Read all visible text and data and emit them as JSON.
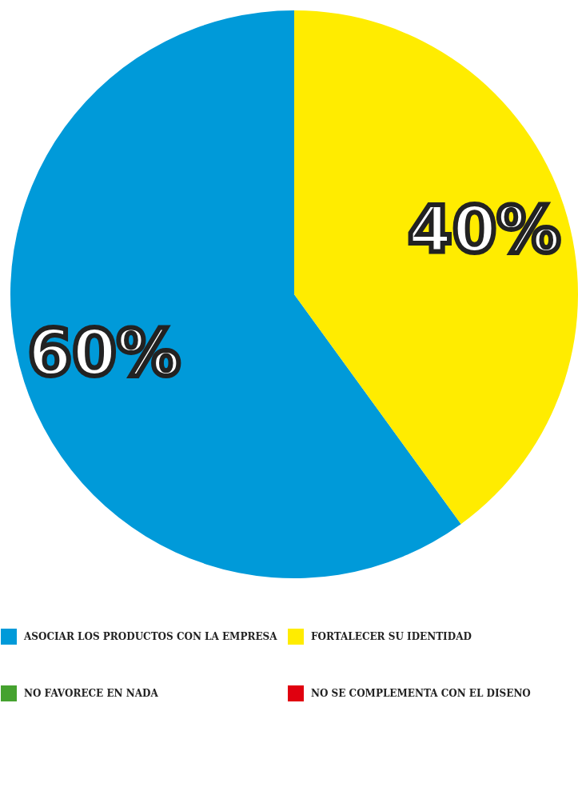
{
  "chart_data": {
    "type": "pie",
    "categories": [
      "ASOCIAR LOS PRODUCTOS CON LA EMPRESA",
      "FORTALECER SU IDENTIDAD",
      "NO FAVORECE EN NADA",
      "NO SE COMPLEMENTA CON EL DISENO"
    ],
    "values": [
      60,
      40,
      0,
      0
    ],
    "colors": [
      "#009ad9",
      "#ffec00",
      "#45a22f",
      "#e0000f"
    ],
    "value_labels": [
      "60%",
      "40%",
      null,
      null
    ],
    "legend": "bottom"
  }
}
